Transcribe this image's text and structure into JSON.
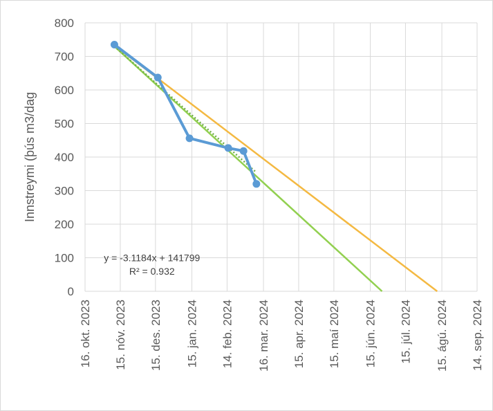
{
  "chart_data": {
    "type": "line",
    "ylabel": "Innstreymi (þús m3/dag",
    "ylim": [
      0,
      800
    ],
    "yticks": [
      0,
      100,
      200,
      300,
      400,
      500,
      600,
      700,
      800
    ],
    "x_axis": {
      "min": "2023-10-16",
      "max": "2024-09-14",
      "ticks": [
        {
          "date": "2023-10-16",
          "label": "16. okt. 2023"
        },
        {
          "date": "2023-11-15",
          "label": "15. nóv. 2023"
        },
        {
          "date": "2023-12-15",
          "label": "15. des. 2023"
        },
        {
          "date": "2024-01-15",
          "label": "15. jan. 2024"
        },
        {
          "date": "2024-02-14",
          "label": "14. feb. 2024"
        },
        {
          "date": "2024-03-16",
          "label": "16. mar. 2024"
        },
        {
          "date": "2024-04-15",
          "label": "15. apr. 2024"
        },
        {
          "date": "2024-05-15",
          "label": "15. maí 2024"
        },
        {
          "date": "2024-06-15",
          "label": "15. jún. 2024"
        },
        {
          "date": "2024-07-15",
          "label": "15. júl. 2024"
        },
        {
          "date": "2024-08-15",
          "label": "15. ágú. 2024"
        },
        {
          "date": "2024-09-14",
          "label": "14. sep. 2024"
        }
      ]
    },
    "grid": true,
    "series": [
      {
        "type": "line-markers",
        "color": "#5b9bd5",
        "points": [
          {
            "x": "2023-11-10",
            "y": 735
          },
          {
            "x": "2023-12-17",
            "y": 637
          },
          {
            "x": "2024-01-13",
            "y": 456
          },
          {
            "x": "2024-02-15",
            "y": 427
          },
          {
            "x": "2024-02-28",
            "y": 418
          },
          {
            "x": "2024-03-10",
            "y": 320
          }
        ]
      },
      {
        "type": "trendline-dotted",
        "color": "#70ad47",
        "points": [
          {
            "x": "2023-11-10",
            "y": 730
          },
          {
            "x": "2024-03-10",
            "y": 354
          }
        ]
      },
      {
        "type": "line",
        "color": "#92d050",
        "points": [
          {
            "x": "2023-11-10",
            "y": 730
          },
          {
            "x": "2024-06-25",
            "y": 0
          }
        ]
      },
      {
        "type": "line",
        "color": "#f4b942",
        "points": [
          {
            "x": "2023-11-10",
            "y": 733
          },
          {
            "x": "2024-08-11",
            "y": 0
          }
        ]
      },
      {
        "type": "line",
        "color": "#a6a6a6",
        "points": [
          {
            "x": "2023-11-10",
            "y": 735
          },
          {
            "x": "2023-12-17",
            "y": 637
          }
        ]
      }
    ],
    "annotations": [
      {
        "text": "y = -3.1184x + 141799",
        "at": {
          "x": "2023-12-12",
          "y": 100
        }
      },
      {
        "text": "R² = 0.932",
        "at": {
          "x": "2023-12-12",
          "y": 60
        }
      }
    ]
  }
}
